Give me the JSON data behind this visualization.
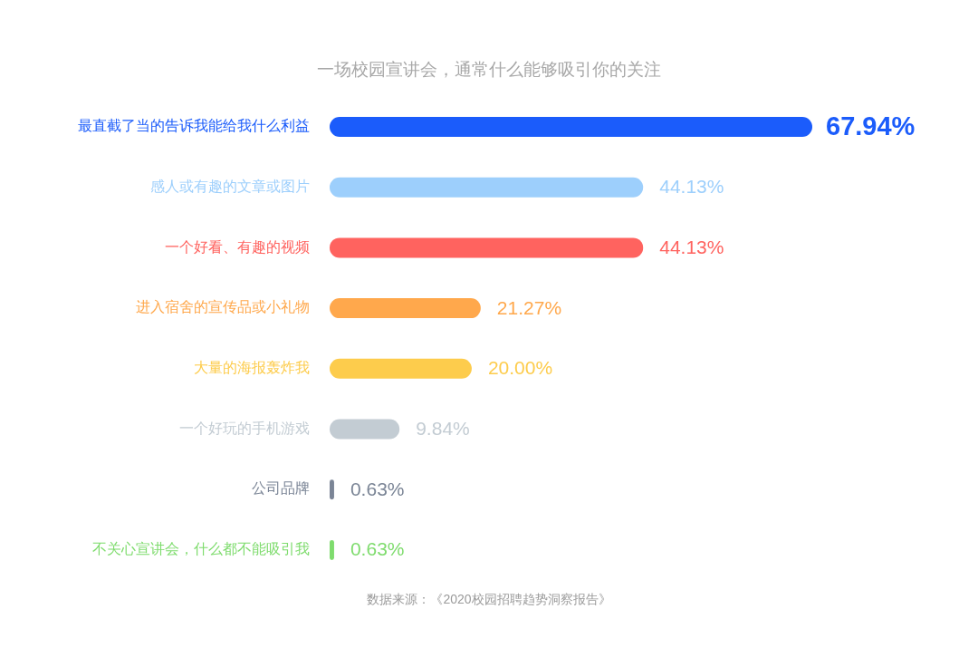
{
  "chart_data": {
    "type": "bar",
    "orientation": "horizontal",
    "title": "一场校园宣讲会，通常什么能够吸引你的关注",
    "categories": [
      "最直截了当的告诉我能给我什么利益",
      "感人或有趣的文章或图片",
      "一个好看、有趣的视频",
      "进入宿舍的宣传品或小礼物",
      "大量的海报轰炸我",
      "一个好玩的手机游戏",
      "公司品牌",
      "不关心宣讲会，什么都不能吸引我"
    ],
    "values": [
      67.94,
      44.13,
      44.13,
      21.27,
      20.0,
      9.84,
      0.63,
      0.63
    ],
    "colors": [
      "#1b5cfb",
      "#9dcffc",
      "#ff635f",
      "#ffa84c",
      "#fdcc4c",
      "#c3ccd3",
      "#7b8596",
      "#7fdc6e"
    ],
    "value_labels": [
      "67.94%",
      "44.13%",
      "44.13%",
      "21.27%",
      "20.00%",
      "9.84%",
      "0.63%",
      "0.63%"
    ],
    "annotations": [
      "数据来源：《2020校园招聘趋势洞察报告》"
    ]
  }
}
